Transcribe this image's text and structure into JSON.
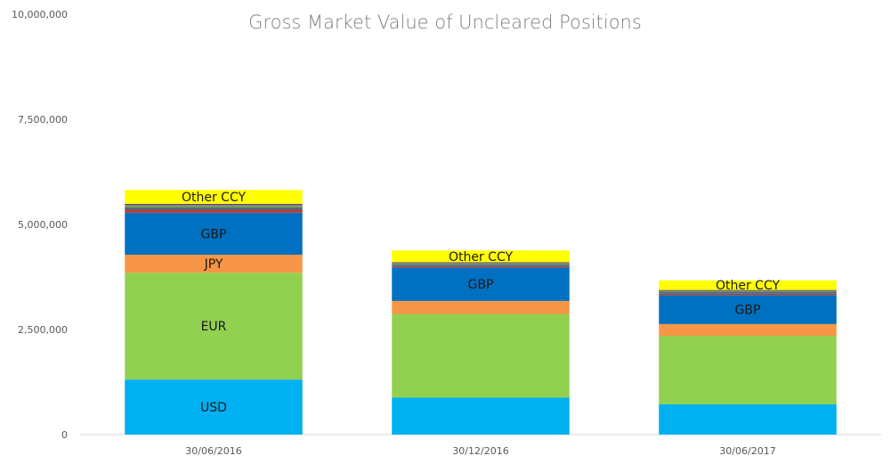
{
  "chart_data": {
    "type": "bar",
    "stacked": true,
    "title": "Gross Market Value of Uncleared Positions",
    "xlabel": "",
    "ylabel": "",
    "ylim": [
      0,
      10000000
    ],
    "yticks": [
      {
        "value": 0,
        "label": "0"
      },
      {
        "value": 2500000,
        "label": "2,500,000"
      },
      {
        "value": 5000000,
        "label": "5,000,000"
      },
      {
        "value": 7500000,
        "label": "7,500,000"
      },
      {
        "value": 10000000,
        "label": "10,000,000"
      }
    ],
    "grid": false,
    "legend": "none",
    "categories": [
      "30/06/2016",
      "30/12/2016",
      "30/06/2017"
    ],
    "series": [
      {
        "name": "USD",
        "color": "#00b0f0",
        "values": [
          1310000,
          880000,
          720000
        ],
        "labels": [
          "USD",
          "",
          ""
        ]
      },
      {
        "name": "EUR",
        "color": "#92d050",
        "values": [
          2540000,
          1990000,
          1630000
        ],
        "labels": [
          "EUR",
          "",
          ""
        ]
      },
      {
        "name": "JPY",
        "color": "#f79646",
        "values": [
          430000,
          310000,
          280000
        ],
        "labels": [
          "JPY",
          "",
          ""
        ]
      },
      {
        "name": "GBP",
        "color": "#0070c0",
        "values": [
          1000000,
          800000,
          690000
        ],
        "labels": [
          "GBP",
          "GBP",
          "GBP"
        ]
      },
      {
        "name": "",
        "color": "#c0392b",
        "values": [
          70000,
          30000,
          30000
        ],
        "labels": [
          "",
          "",
          ""
        ]
      },
      {
        "name": "",
        "color": "#4e6b8a",
        "values": [
          60000,
          40000,
          40000
        ],
        "labels": [
          "",
          "",
          ""
        ]
      },
      {
        "name": "",
        "color": "#70a040",
        "values": [
          50000,
          30000,
          30000
        ],
        "labels": [
          "",
          "",
          ""
        ]
      },
      {
        "name": "",
        "color": "#7030a0",
        "values": [
          30000,
          20000,
          20000
        ],
        "labels": [
          "",
          "",
          ""
        ]
      },
      {
        "name": "Other CCY",
        "color": "#ffff00",
        "values": [
          330000,
          280000,
          230000
        ],
        "labels": [
          "Other CCY",
          "Other CCY",
          "Other CCY"
        ]
      }
    ]
  }
}
